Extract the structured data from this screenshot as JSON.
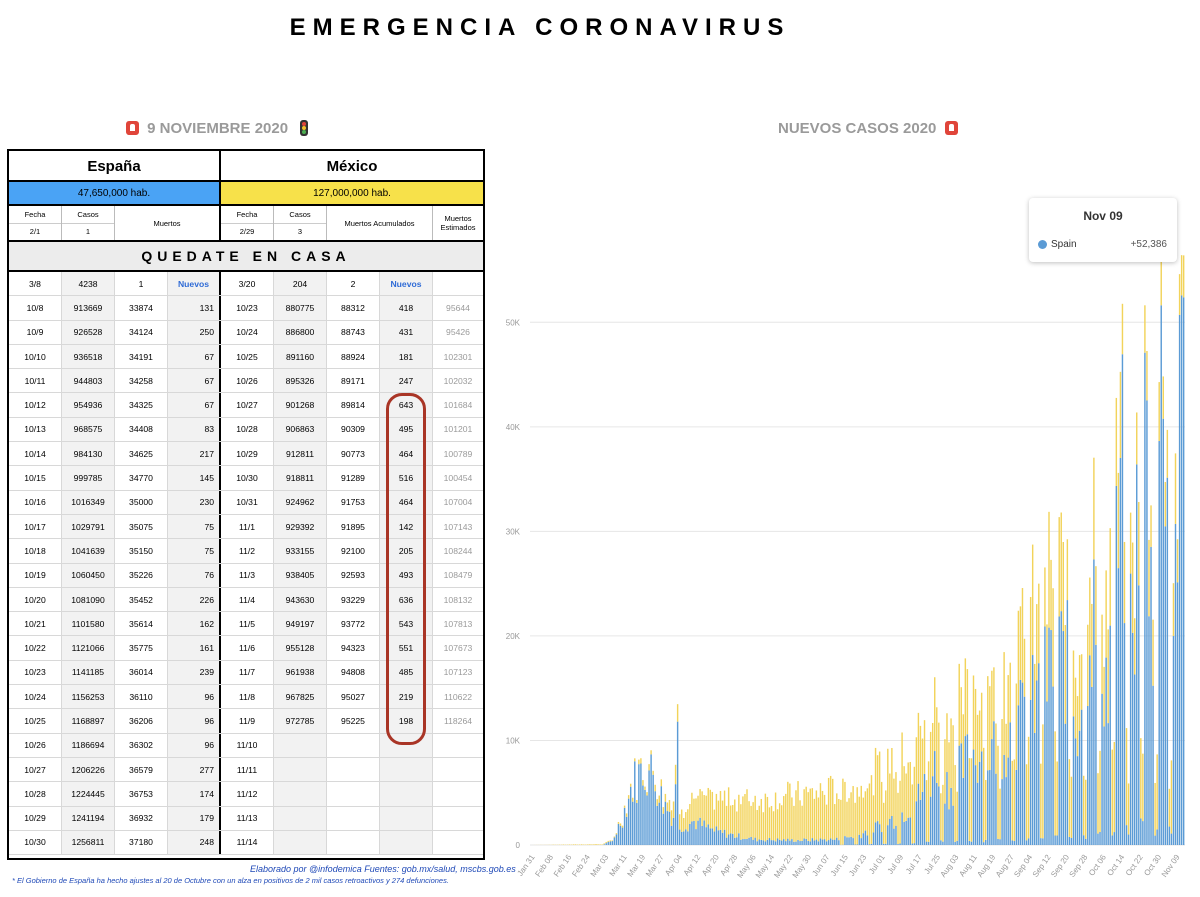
{
  "main_title": "EMERGENCIA CORONAVIRUS",
  "left_subtitle": "9 NOVIEMBRE  2020",
  "right_subtitle": "NUEVOS CASOS 2020",
  "table": {
    "spain_name": "España",
    "mexico_name": "México",
    "spain_pop": "47,650,000 hab.",
    "mexico_pop": "127,000,000 hab.",
    "h_fecha": "Fecha",
    "h_casos": "Casos",
    "h_muertos": "Muertos",
    "h_muertos_acum": "Muertos Acumulados",
    "h_muertos_est": "Muertos Estimados",
    "spain_first_date": "2/1",
    "spain_first_cases": "1",
    "mexico_first_date": "2/29",
    "mexico_first_cases": "3",
    "banner": "QUEDATE EN CASA",
    "marker_row": [
      "3/8",
      "4238",
      "1",
      "Nuevos",
      "3/20",
      "204",
      "2",
      "Nuevos",
      ""
    ],
    "rows": [
      [
        "10/8",
        "913669",
        "33874",
        "131",
        "10/23",
        "880775",
        "88312",
        "418",
        "95644"
      ],
      [
        "10/9",
        "926528",
        "34124",
        "250",
        "10/24",
        "886800",
        "88743",
        "431",
        "95426"
      ],
      [
        "10/10",
        "936518",
        "34191",
        "67",
        "10/25",
        "891160",
        "88924",
        "181",
        "102301"
      ],
      [
        "10/11",
        "944803",
        "34258",
        "67",
        "10/26",
        "895326",
        "89171",
        "247",
        "102032"
      ],
      [
        "10/12",
        "954936",
        "34325",
        "67",
        "10/27",
        "901268",
        "89814",
        "643",
        "101684"
      ],
      [
        "10/13",
        "968575",
        "34408",
        "83",
        "10/28",
        "906863",
        "90309",
        "495",
        "101201"
      ],
      [
        "10/14",
        "984130",
        "34625",
        "217",
        "10/29",
        "912811",
        "90773",
        "464",
        "100789"
      ],
      [
        "10/15",
        "999785",
        "34770",
        "145",
        "10/30",
        "918811",
        "91289",
        "516",
        "100454"
      ],
      [
        "10/16",
        "1016349",
        "35000",
        "230",
        "10/31",
        "924962",
        "91753",
        "464",
        "107004"
      ],
      [
        "10/17",
        "1029791",
        "35075",
        "75",
        "11/1",
        "929392",
        "91895",
        "142",
        "107143"
      ],
      [
        "10/18",
        "1041639",
        "35150",
        "75",
        "11/2",
        "933155",
        "92100",
        "205",
        "108244"
      ],
      [
        "10/19",
        "1060450",
        "35226",
        "76",
        "11/3",
        "938405",
        "92593",
        "493",
        "108479"
      ],
      [
        "10/20",
        "1081090",
        "35452",
        "226",
        "11/4",
        "943630",
        "93229",
        "636",
        "108132"
      ],
      [
        "10/21",
        "1101580",
        "35614",
        "162",
        "11/5",
        "949197",
        "93772",
        "543",
        "107813"
      ],
      [
        "10/22",
        "1121066",
        "35775",
        "161",
        "11/6",
        "955128",
        "94323",
        "551",
        "107673"
      ],
      [
        "10/23",
        "1141185",
        "36014",
        "239",
        "11/7",
        "961938",
        "94808",
        "485",
        "107123"
      ],
      [
        "10/24",
        "1156253",
        "36110",
        "96",
        "11/8",
        "967825",
        "95027",
        "219",
        "110622"
      ],
      [
        "10/25",
        "1168897",
        "36206",
        "96",
        "11/9",
        "972785",
        "95225",
        "198",
        "118264"
      ],
      [
        "10/26",
        "1186694",
        "36302",
        "96",
        "11/10",
        "",
        "",
        "",
        ""
      ],
      [
        "10/27",
        "1206226",
        "36579",
        "277",
        "11/11",
        "",
        "",
        "",
        ""
      ],
      [
        "10/28",
        "1224445",
        "36753",
        "174",
        "11/12",
        "",
        "",
        "",
        ""
      ],
      [
        "10/29",
        "1241194",
        "36932",
        "179",
        "11/13",
        "",
        "",
        "",
        ""
      ],
      [
        "10/30",
        "1256811",
        "37180",
        "248",
        "11/14",
        "",
        "",
        "",
        ""
      ]
    ]
  },
  "credit": "Elaborado por @infodemica Fuentes: gob.mx/salud, mscbs.gob.es",
  "footnote": "* El Gobierno de España ha hecho ajustes al 20 de Octubre con un alza en positivos de 2 mil casos retroactivos y 274 defunciones.",
  "colors": {
    "spain_blue": "#5b9bd5",
    "mexico_yellow": "#f2d35a",
    "spain_header": "#4aa3f5",
    "mexico_header": "#f7e14a",
    "highlight_red": "#a93526"
  },
  "tooltip": {
    "date": "Nov 09",
    "series": "Spain",
    "value": "+52,386"
  },
  "chart_data": {
    "type": "bar",
    "stacked": true,
    "title": "NUEVOS CASOS 2020",
    "ylim": [
      0,
      55000
    ],
    "y_ticks": [
      "0",
      "10K",
      "20K",
      "30K",
      "40K",
      "50K"
    ],
    "y_tick_values": [
      0,
      10000,
      20000,
      30000,
      40000,
      50000
    ],
    "x_tick_labels": [
      "Jan 31",
      "Feb 08",
      "Feb 16",
      "Feb 24",
      "Mar 03",
      "Mar 11",
      "Mar 19",
      "Mar 27",
      "Apr 04",
      "Apr 12",
      "Apr 20",
      "Apr 28",
      "May 06",
      "May 14",
      "May 22",
      "May 30",
      "Jun 07",
      "Jun 15",
      "Jun 23",
      "Jul 01",
      "Jul 09",
      "Jul 17",
      "Jul 25",
      "Aug 03",
      "Aug 11",
      "Aug 19",
      "Aug 27",
      "Sep 04",
      "Sep 12",
      "Sep 20",
      "Sep 28",
      "Oct 06",
      "Oct 14",
      "Oct 22",
      "Oct 30",
      "Nov 09"
    ],
    "series": [
      {
        "name": "Spain",
        "color": "#5b9bd5"
      },
      {
        "color": "#f2d35a"
      }
    ],
    "blue_keypoints": [
      [
        0,
        0
      ],
      [
        35,
        0
      ],
      [
        40,
        400
      ],
      [
        45,
        3000
      ],
      [
        50,
        6500
      ],
      [
        55,
        8000
      ],
      [
        60,
        7500
      ],
      [
        65,
        4500
      ],
      [
        70,
        3000
      ],
      [
        72,
        11800
      ],
      [
        73,
        2000
      ],
      [
        80,
        2500
      ],
      [
        90,
        1500
      ],
      [
        100,
        1000
      ],
      [
        110,
        600
      ],
      [
        130,
        500
      ],
      [
        150,
        600
      ],
      [
        160,
        1000
      ],
      [
        170,
        2000
      ],
      [
        180,
        3000
      ],
      [
        190,
        5000
      ],
      [
        195,
        7000
      ],
      [
        200,
        9000
      ],
      [
        205,
        6000
      ],
      [
        215,
        9500
      ],
      [
        225,
        10000
      ],
      [
        230,
        11000
      ],
      [
        235,
        12000
      ],
      [
        240,
        13000
      ],
      [
        250,
        16000
      ],
      [
        255,
        19000
      ],
      [
        262,
        20000
      ],
      [
        268,
        13000
      ],
      [
        275,
        25000
      ],
      [
        283,
        17000
      ],
      [
        290,
        38000
      ],
      [
        295,
        20000
      ],
      [
        300,
        52000
      ],
      [
        305,
        22000
      ],
      [
        310,
        54000
      ],
      [
        315,
        25000
      ],
      [
        320,
        52000
      ]
    ],
    "yellow_keypoints": [
      [
        0,
        0
      ],
      [
        40,
        100
      ],
      [
        60,
        600
      ],
      [
        70,
        1500
      ],
      [
        80,
        2500
      ],
      [
        100,
        4000
      ],
      [
        120,
        4500
      ],
      [
        140,
        5000
      ],
      [
        160,
        5500
      ],
      [
        170,
        6000
      ],
      [
        180,
        6500
      ],
      [
        200,
        7000
      ],
      [
        220,
        7500
      ],
      [
        230,
        8000
      ],
      [
        240,
        9000
      ],
      [
        250,
        9500
      ],
      [
        260,
        9000
      ],
      [
        270,
        8000
      ],
      [
        280,
        8500
      ],
      [
        290,
        8000
      ],
      [
        300,
        7000
      ],
      [
        310,
        6000
      ],
      [
        320,
        6000
      ]
    ],
    "n_days": 321
  }
}
